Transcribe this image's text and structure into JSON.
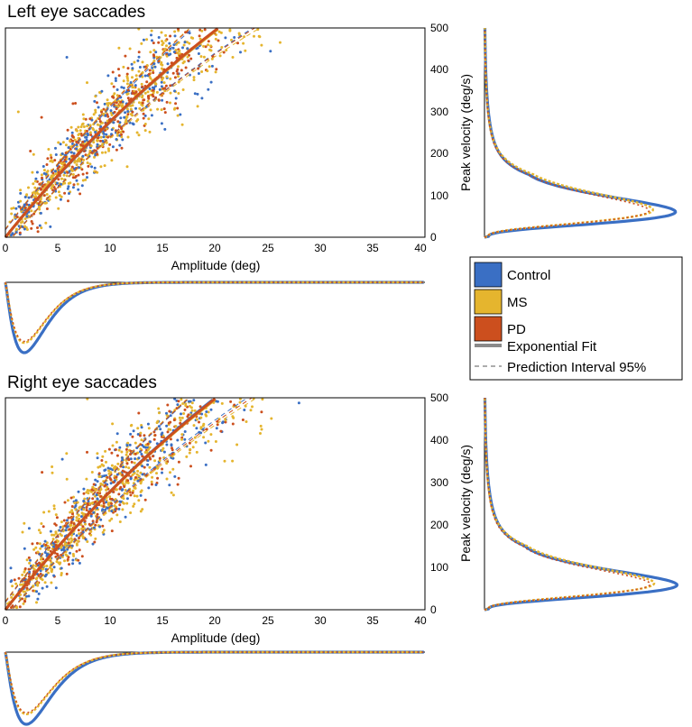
{
  "colors": {
    "control": "#3a6fc4",
    "ms": "#e5b52e",
    "pd": "#cc4f1e",
    "fit": "#8a8a8a",
    "pi": "#7a7a7a"
  },
  "legend": {
    "items": [
      {
        "label": "Control",
        "kind": "box",
        "color": "#3a6fc4"
      },
      {
        "label": "MS",
        "kind": "box",
        "color": "#e5b52e"
      },
      {
        "label": "PD",
        "kind": "box",
        "color": "#cc4f1e"
      },
      {
        "label": "Exponential Fit",
        "kind": "solid",
        "color": "#8a8a8a"
      },
      {
        "label": "Prediction Interval 95%",
        "kind": "dashed",
        "color": "#7a7a7a"
      }
    ]
  },
  "chart_data": [
    {
      "type": "scatter",
      "title": "Left eye saccades",
      "xlabel": "Amplitude (deg)",
      "ylabel": "Peak velocity (deg/s)",
      "xlim": [
        0,
        40
      ],
      "ylim": [
        0,
        500
      ],
      "xticks": [
        0,
        5,
        10,
        15,
        20,
        25,
        30,
        35,
        40
      ],
      "yticks": [
        0,
        100,
        200,
        300,
        400,
        500
      ],
      "series": [
        {
          "name": "Control",
          "fit": {
            "vmax": 1300,
            "c": 42
          },
          "pi_width": 70,
          "velocity_density_peak": 60
        },
        {
          "name": "MS",
          "fit": {
            "vmax": 1250,
            "c": 40
          },
          "pi_width": 80,
          "velocity_density_peak": 65
        },
        {
          "name": "PD",
          "fit": {
            "vmax": 1280,
            "c": 41
          },
          "pi_width": 75,
          "velocity_density_peak": 63
        }
      ],
      "amplitude_density_peak_deg": 1.8
    },
    {
      "type": "scatter",
      "title": "Right eye saccades",
      "xlabel": "Amplitude (deg)",
      "ylabel": "Peak velocity (deg/s)",
      "xlim": [
        0,
        40
      ],
      "ylim": [
        0,
        500
      ],
      "xticks": [
        0,
        5,
        10,
        15,
        20,
        25,
        30,
        35,
        40
      ],
      "yticks": [
        0,
        100,
        200,
        300,
        400,
        500
      ],
      "series": [
        {
          "name": "Control",
          "fit": {
            "vmax": 1320,
            "c": 42
          },
          "pi_width": 70,
          "velocity_density_peak": 58
        },
        {
          "name": "MS",
          "fit": {
            "vmax": 1260,
            "c": 40
          },
          "pi_width": 80,
          "velocity_density_peak": 62
        },
        {
          "name": "PD",
          "fit": {
            "vmax": 1290,
            "c": 41
          },
          "pi_width": 75,
          "velocity_density_peak": 60
        }
      ],
      "amplitude_density_peak_deg": 2.0
    }
  ]
}
